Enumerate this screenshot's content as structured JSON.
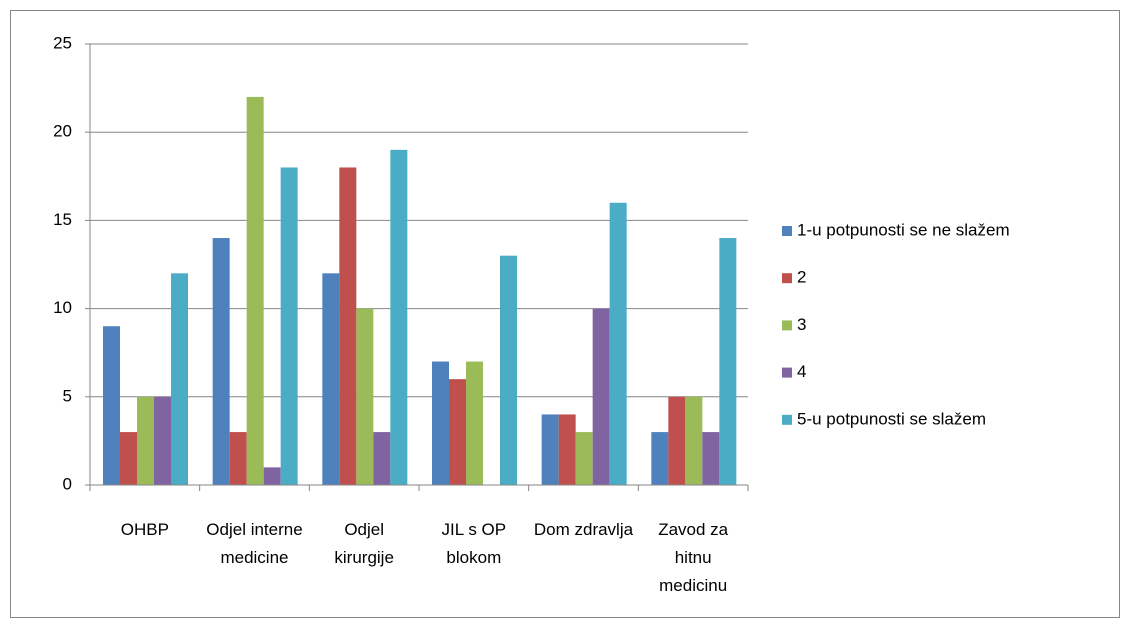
{
  "chart_data": {
    "type": "bar",
    "categories": [
      "OHBP",
      "Odjel interne medicine",
      "Odjel kirurgije",
      "JIL s OP blokom",
      "Dom zdravlja",
      "Zavod za hitnu medicinu"
    ],
    "series": [
      {
        "name": "1-u potpunosti se ne slažem",
        "color": "#4f81bd",
        "values": [
          9,
          14,
          12,
          7,
          4,
          3
        ]
      },
      {
        "name": "2",
        "color": "#c0504d",
        "values": [
          3,
          3,
          18,
          6,
          4,
          5
        ]
      },
      {
        "name": "3",
        "color": "#9bbb59",
        "values": [
          5,
          22,
          10,
          7,
          3,
          5
        ]
      },
      {
        "name": "4",
        "color": "#8064a2",
        "values": [
          5,
          1,
          3,
          0,
          10,
          3
        ]
      },
      {
        "name": "5-u potpunosti se slažem",
        "color": "#4bacc6",
        "values": [
          12,
          18,
          19,
          13,
          16,
          14
        ]
      }
    ],
    "ylim": [
      0,
      25
    ],
    "yticks": [
      0,
      5,
      10,
      15,
      20,
      25
    ],
    "grid": true,
    "legend": "right"
  }
}
